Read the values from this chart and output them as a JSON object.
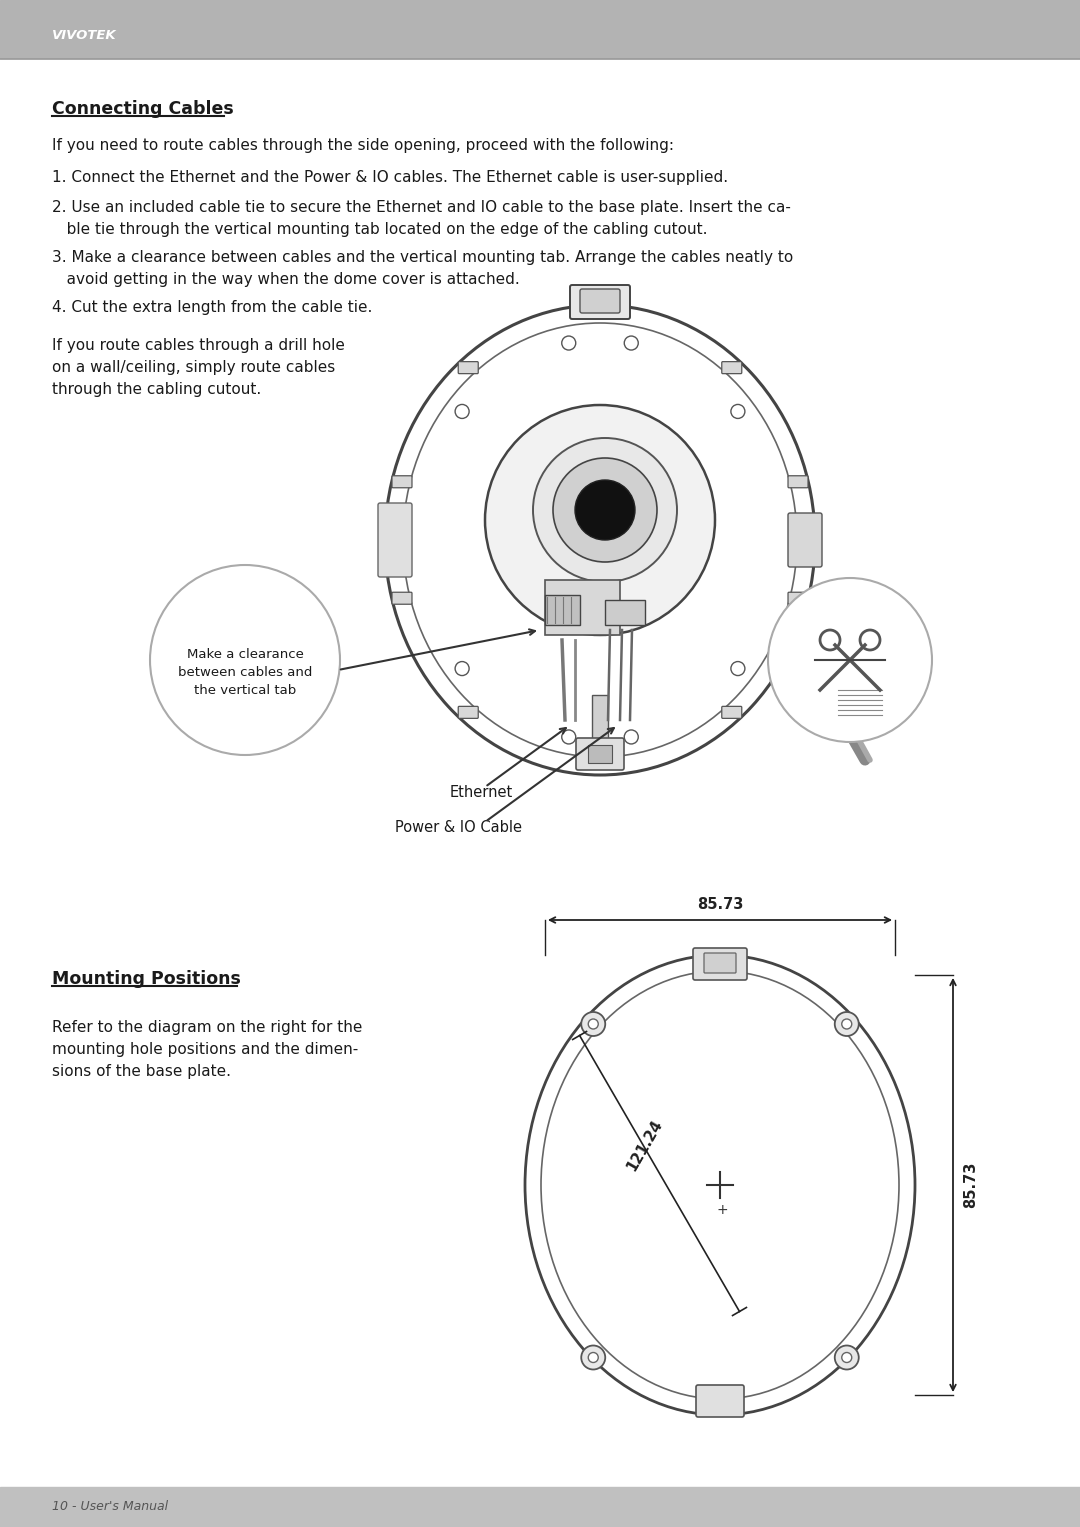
{
  "header_bg": "#b3b3b3",
  "header_text": "VIVOTEK",
  "header_text_color": "#ffffff",
  "page_bg": "#ffffff",
  "footer_bg": "#c0c0c0",
  "footer_text": "10 - User's Manual",
  "footer_text_color": "#555555",
  "title1": "Connecting Cables",
  "body_text_color": "#1a1a1a",
  "main_font_size": 11.0,
  "title_font_size": 12.5,
  "intro_line": "If you need to route cables through the side opening, proceed with the following:",
  "step1": "1. Connect the Ethernet and the Power & IO cables. The Ethernet cable is user-supplied.",
  "step2a": "2. Use an included cable tie to secure the Ethernet and IO cable to the base plate. Insert the ca-",
  "step2b": "   ble tie through the vertical mounting tab located on the edge of the cabling cutout.",
  "step3a": "3. Make a clearance between cables and the vertical mounting tab. Arrange the cables neatly to",
  "step3b": "   avoid getting in the way when the dome cover is attached.",
  "step4": "4. Cut the extra length from the cable tie.",
  "drill_text_line1": "If you route cables through a drill hole",
  "drill_text_line2": "on a wall/ceiling, simply route cables",
  "drill_text_line3": "through the cabling cutout.",
  "callout1_line1": "Make a clearance",
  "callout1_line2": "between cables and",
  "callout1_line3": "the vertical tab",
  "callout2": "Ethernet",
  "callout3": "Power & IO Cable",
  "title2": "Mounting Positions",
  "mount_line1": "Refer to the diagram on the right for the",
  "mount_line2": "mounting hole positions and the dimen-",
  "mount_line3": "sions of the base plate.",
  "dim1": "85.73",
  "dim2": "121.24",
  "dim3": "85.73",
  "dim_color": "#222222",
  "line_color": "#333333",
  "edge_color": "#444444",
  "light_gray": "#e8e8e8",
  "mid_gray": "#888888",
  "dark_line": "#222222"
}
